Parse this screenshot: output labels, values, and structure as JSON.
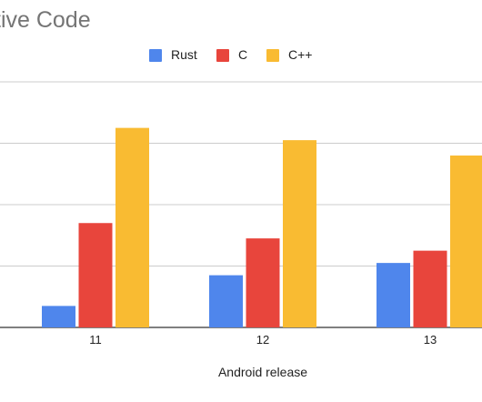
{
  "chart_data": {
    "type": "bar",
    "title": "tive Code",
    "xlabel": "Android release",
    "ylabel": "",
    "categories": [
      "11",
      "12",
      "13"
    ],
    "series": [
      {
        "name": "Rust",
        "color": "#4f86ec",
        "values": [
          0.35,
          0.85,
          1.05
        ]
      },
      {
        "name": "C",
        "color": "#e8453c",
        "values": [
          1.7,
          1.45,
          1.25
        ]
      },
      {
        "name": "C++",
        "color": "#f9bb32",
        "values": [
          3.25,
          3.05,
          2.8
        ]
      }
    ],
    "ylim": [
      0,
      4
    ],
    "gridlines": [
      0,
      1,
      2,
      3,
      4
    ],
    "grid": true,
    "legend_position": "top"
  }
}
